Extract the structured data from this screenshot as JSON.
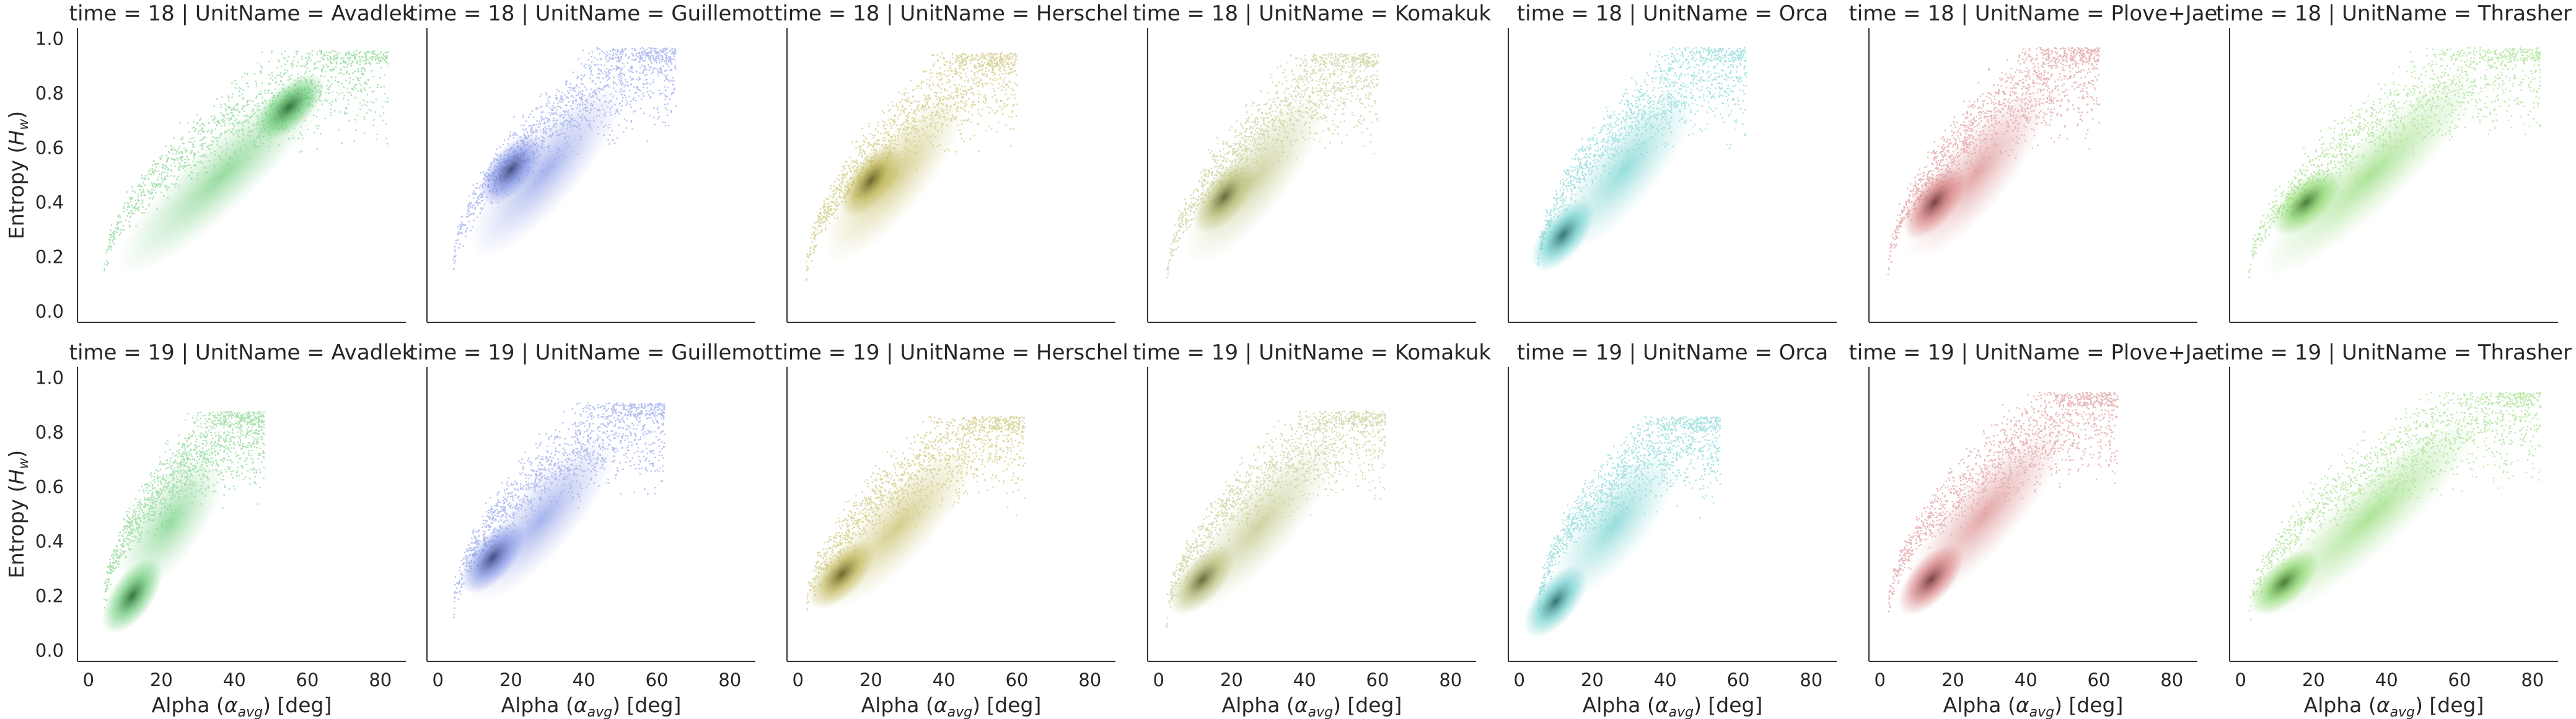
{
  "chart_data": {
    "type": "heatmap",
    "style": "facet grid of 2D density histograms (scatter-like points)",
    "row_facet": "time",
    "col_facet": "UnitName",
    "rows": [
      18,
      19
    ],
    "cols": [
      "Avadlek",
      "Guillemot",
      "Herschel",
      "Komakuk",
      "Orca",
      "Plove+Jae",
      "Thrasher"
    ],
    "xlabel_prefix": "Alpha (",
    "xlabel_math": "α",
    "xlabel_sub": "avg",
    "xlabel_suffix": ") [deg]",
    "ylabel_prefix": "Entropy (",
    "ylabel_math": "H",
    "ylabel_sub": "w",
    "ylabel_suffix": ")",
    "xlim": [
      -3,
      87
    ],
    "ylim": [
      -0.04,
      1.04
    ],
    "xticks": [
      "0",
      "20",
      "40",
      "60",
      "80"
    ],
    "yticks": [
      "0.0",
      "0.2",
      "0.4",
      "0.6",
      "0.8",
      "1.0"
    ],
    "grid": false,
    "colors": {
      "Avadlek": "#4fc35f",
      "Guillemot": "#6a7fe0",
      "Herschel": "#b6ac3c",
      "Komakuk": "#adb561",
      "Orca": "#4fc6c3",
      "Plove+Jae": "#d06a6c",
      "Thrasher": "#74d150"
    },
    "panels": [
      {
        "time": 18,
        "unit": "Avadlek",
        "title": "time = 18 | UnitName = Avadlek",
        "x_range": [
          4,
          82
        ],
        "y_range": [
          0.04,
          0.96
        ],
        "peak": [
          55,
          0.75
        ]
      },
      {
        "time": 18,
        "unit": "Guillemot",
        "title": "time = 18 | UnitName = Guillemot",
        "x_range": [
          4,
          65
        ],
        "y_range": [
          0.06,
          0.97
        ],
        "peak": [
          20,
          0.52
        ]
      },
      {
        "time": 18,
        "unit": "Herschel",
        "title": "time = 18 | UnitName = Herschel",
        "x_range": [
          2,
          60
        ],
        "y_range": [
          0.03,
          0.95
        ],
        "peak": [
          20,
          0.48
        ]
      },
      {
        "time": 18,
        "unit": "Komakuk",
        "title": "time = 18 | UnitName = Komakuk",
        "x_range": [
          2,
          60
        ],
        "y_range": [
          0.02,
          0.95
        ],
        "peak": [
          18,
          0.42
        ]
      },
      {
        "time": 18,
        "unit": "Orca",
        "title": "time = 18 | UnitName = Orca",
        "x_range": [
          5,
          62
        ],
        "y_range": [
          0.07,
          0.97
        ],
        "peak": [
          12,
          0.28
        ]
      },
      {
        "time": 18,
        "unit": "Plove+Jae",
        "title": "time = 18 | UnitName = Plove+Jae",
        "x_range": [
          2,
          60
        ],
        "y_range": [
          0.04,
          0.97
        ],
        "peak": [
          15,
          0.4
        ]
      },
      {
        "time": 18,
        "unit": "Thrasher",
        "title": "time = 18 | UnitName = Thrasher",
        "x_range": [
          2,
          82
        ],
        "y_range": [
          0.03,
          0.97
        ],
        "peak": [
          18,
          0.4
        ]
      },
      {
        "time": 19,
        "unit": "Avadlek",
        "title": "time = 19 | UnitName = Avadlek",
        "x_range": [
          4,
          48
        ],
        "y_range": [
          0.06,
          0.88
        ],
        "peak": [
          12,
          0.2
        ]
      },
      {
        "time": 19,
        "unit": "Guillemot",
        "title": "time = 19 | UnitName = Guillemot",
        "x_range": [
          4,
          62
        ],
        "y_range": [
          0.05,
          0.91
        ],
        "peak": [
          15,
          0.34
        ]
      },
      {
        "time": 19,
        "unit": "Herschel",
        "title": "time = 19 | UnitName = Herschel",
        "x_range": [
          2,
          62
        ],
        "y_range": [
          0.04,
          0.86
        ],
        "peak": [
          12,
          0.28
        ]
      },
      {
        "time": 19,
        "unit": "Komakuk",
        "title": "time = 19 | UnitName = Komakuk",
        "x_range": [
          2,
          62
        ],
        "y_range": [
          0.02,
          0.88
        ],
        "peak": [
          12,
          0.26
        ]
      },
      {
        "time": 19,
        "unit": "Orca",
        "title": "time = 19 | UnitName = Orca",
        "x_range": [
          5,
          55
        ],
        "y_range": [
          0.06,
          0.86
        ],
        "peak": [
          10,
          0.18
        ]
      },
      {
        "time": 19,
        "unit": "Plove+Jae",
        "title": "time = 19 | UnitName = Plove+Jae",
        "x_range": [
          2,
          65
        ],
        "y_range": [
          0.04,
          0.95
        ],
        "peak": [
          14,
          0.26
        ]
      },
      {
        "time": 19,
        "unit": "Thrasher",
        "title": "time = 19 | UnitName = Thrasher",
        "x_range": [
          2,
          82
        ],
        "y_range": [
          0.03,
          0.95
        ],
        "peak": [
          12,
          0.25
        ]
      }
    ]
  }
}
